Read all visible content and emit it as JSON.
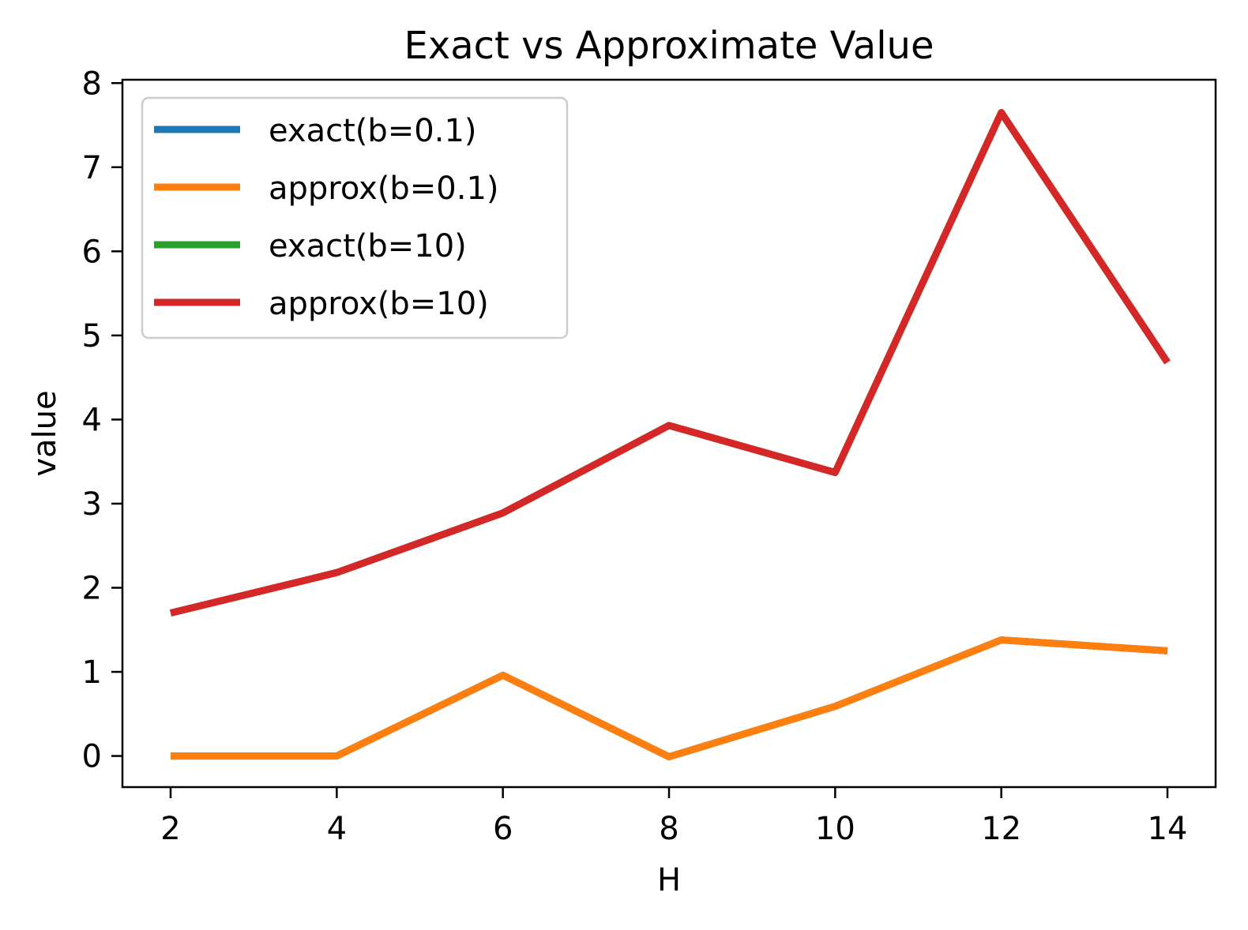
{
  "chart_data": {
    "type": "line",
    "title": "Exact vs Approximate Value",
    "xlabel": "H",
    "ylabel": "value",
    "x": [
      2,
      4,
      6,
      8,
      10,
      12,
      14
    ],
    "xticks": [
      "2",
      "4",
      "6",
      "8",
      "10",
      "12",
      "14"
    ],
    "yticks": [
      "0",
      "1",
      "2",
      "3",
      "4",
      "5",
      "6",
      "7",
      "8"
    ],
    "xlim": [
      1.42,
      14.58
    ],
    "ylim": [
      -0.37,
      8.04
    ],
    "grid": false,
    "legend_position": "top-left",
    "series": [
      {
        "name": "exact(b=0.1)",
        "color": "#1f77b4",
        "values": [
          0.0,
          0.0,
          0.96,
          -0.01,
          0.59,
          1.38,
          1.25
        ]
      },
      {
        "name": "approx(b=0.1)",
        "color": "#ff7f0e",
        "values": [
          0.0,
          0.0,
          0.96,
          -0.01,
          0.59,
          1.38,
          1.25
        ]
      },
      {
        "name": "exact(b=10)",
        "color": "#2ca02c",
        "values": [
          1.7,
          2.18,
          2.89,
          3.93,
          3.37,
          7.65,
          4.68
        ]
      },
      {
        "name": "approx(b=10)",
        "color": "#d62728",
        "values": [
          1.7,
          2.18,
          2.89,
          3.93,
          3.37,
          7.65,
          4.68
        ]
      }
    ]
  }
}
